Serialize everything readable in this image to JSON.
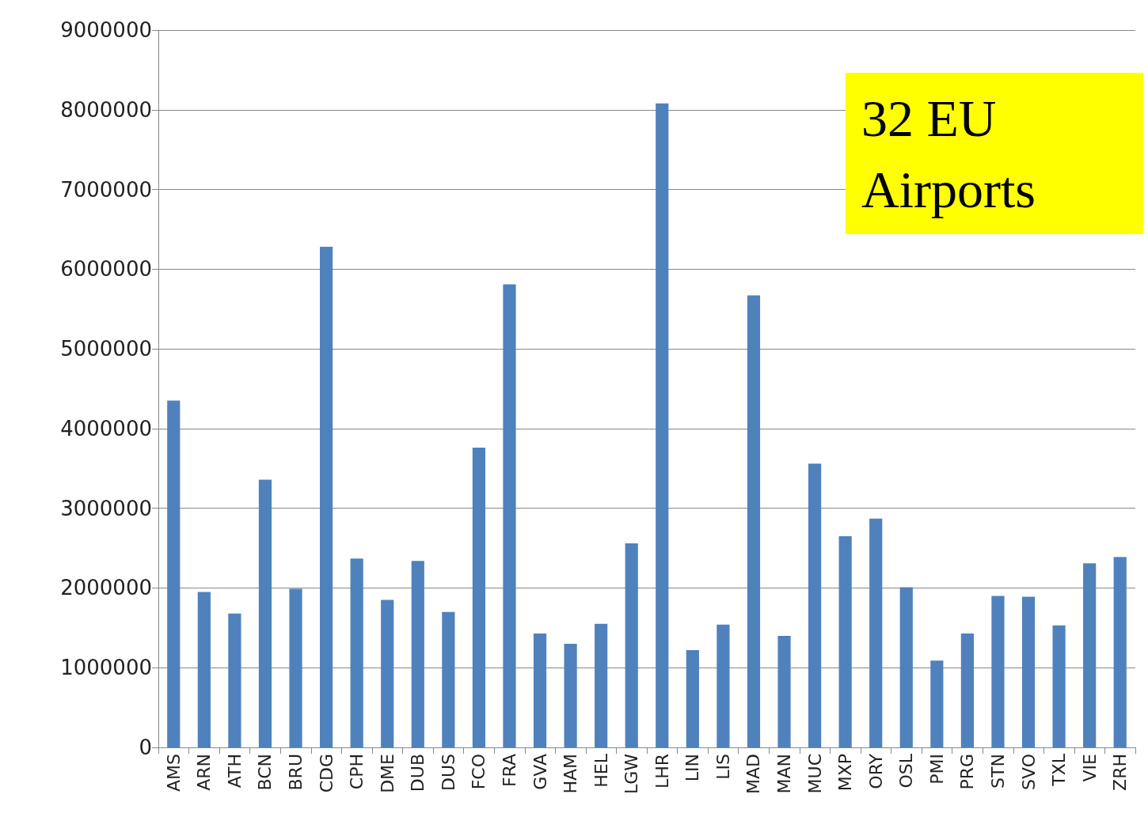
{
  "chart_data": {
    "type": "bar",
    "categories": [
      "AMS",
      "ARN",
      "ATH",
      "BCN",
      "BRU",
      "CDG",
      "CPH",
      "DME",
      "DUB",
      "DUS",
      "FCO",
      "FRA",
      "GVA",
      "HAM",
      "HEL",
      "LGW",
      "LHR",
      "LIN",
      "LIS",
      "MAD",
      "MAN",
      "MUC",
      "MXP",
      "ORY",
      "OSL",
      "PMI",
      "PRG",
      "STN",
      "SVO",
      "TXL",
      "VIE",
      "ZRH"
    ],
    "values": [
      4350000,
      1950000,
      1680000,
      3360000,
      1990000,
      6280000,
      2370000,
      1850000,
      2340000,
      1700000,
      3760000,
      5810000,
      1430000,
      1300000,
      1550000,
      2560000,
      8080000,
      1220000,
      1540000,
      5670000,
      1400000,
      3560000,
      2650000,
      2870000,
      2010000,
      1090000,
      1430000,
      1900000,
      1890000,
      1530000,
      2310000,
      2390000
    ],
    "color": "#4f81bd",
    "ylim": [
      0,
      9000000
    ],
    "yticks": [
      0,
      1000000,
      2000000,
      3000000,
      4000000,
      5000000,
      6000000,
      7000000,
      8000000,
      9000000
    ],
    "grid": "y",
    "annotations": [
      "32 EU Airports"
    ]
  }
}
